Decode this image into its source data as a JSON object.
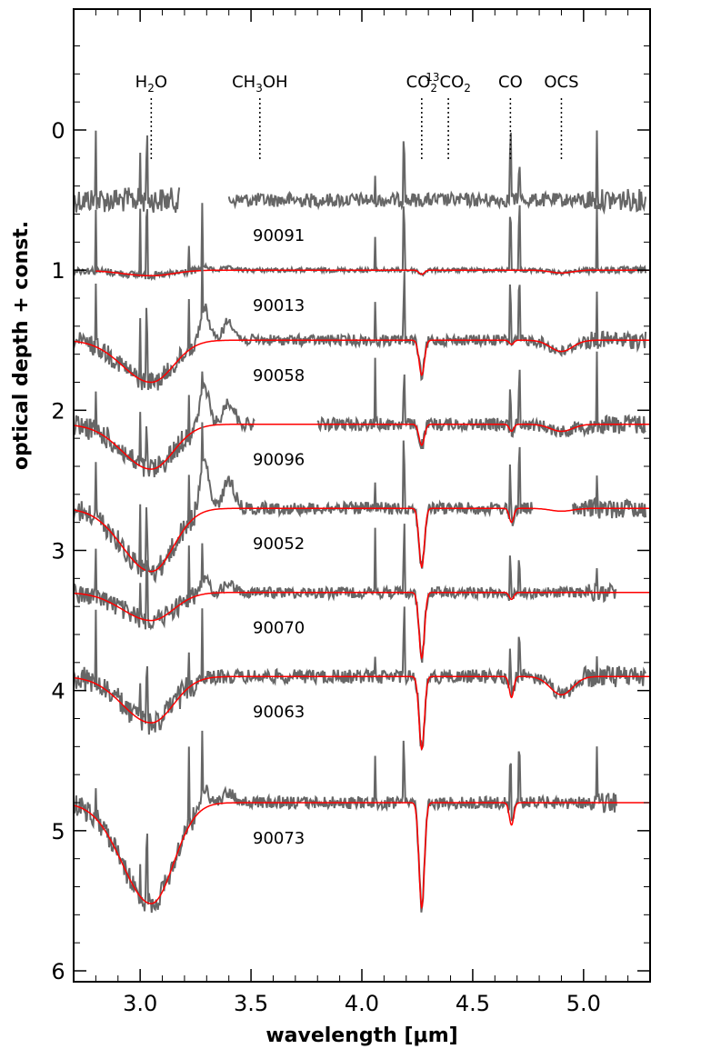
{
  "chart_data": {
    "type": "line",
    "xlabel": "wavelength [μm]",
    "ylabel": "optical depth + const.",
    "xlim": [
      2.7,
      5.3
    ],
    "ylim": [
      6.0,
      -0.7
    ],
    "y_inverted": true,
    "xticks": [
      3.0,
      3.5,
      4.0,
      4.5,
      5.0
    ],
    "xtick_labels": [
      "3.0",
      "3.5",
      "4.0",
      "4.5",
      "5.0"
    ],
    "yticks": [
      0,
      1,
      2,
      3,
      4,
      5,
      6
    ],
    "ytick_labels": [
      "0",
      "1",
      "2",
      "3",
      "4",
      "5",
      "6"
    ],
    "grid": false,
    "legend": "none",
    "colors": {
      "observed": "#666666",
      "fit": "#ff0000"
    },
    "features": [
      {
        "base": "H",
        "sub": "2",
        "post": "O",
        "sup": "",
        "x": 3.05
      },
      {
        "base": "CH",
        "sub": "3",
        "post": "OH",
        "sup": "",
        "x": 3.54
      },
      {
        "base": "CO",
        "sub": "2",
        "post": "",
        "sup": "",
        "x": 4.27
      },
      {
        "base": "CO",
        "sub": "2",
        "post": "",
        "sup": "13",
        "x": 4.39
      },
      {
        "base": "CO",
        "sub": "",
        "post": "",
        "sup": "",
        "x": 4.67
      },
      {
        "base": "OCS",
        "sub": "",
        "post": "",
        "sup": "",
        "x": 4.9
      }
    ],
    "series": [
      {
        "name": "90091",
        "label_x": 3.44,
        "baseline": 0.5,
        "h2o": 0.0,
        "co2": 0.0,
        "co": 0.0,
        "ocs": 0.0,
        "noise": 0.05,
        "has_fit": false,
        "gap": [
          3.18,
          3.4
        ],
        "x_end": 5.28,
        "hump": 0.0
      },
      {
        "name": "90013",
        "label_x": 3.44,
        "baseline": 1.0,
        "h2o": 0.04,
        "co2": 0.03,
        "co": 0.0,
        "ocs": 0.02,
        "noise": 0.015,
        "has_fit": true,
        "gap": null,
        "x_end": 5.28,
        "hump": 0.03
      },
      {
        "name": "90058",
        "label_x": 3.44,
        "baseline": 1.5,
        "h2o": 0.3,
        "co2": 0.25,
        "co": 0.03,
        "ocs": 0.08,
        "noise": 0.04,
        "has_fit": true,
        "gap": null,
        "x_end": 5.28,
        "hump": 0.28
      },
      {
        "name": "90096",
        "label_x": 3.44,
        "baseline": 2.1,
        "h2o": 0.32,
        "co2": 0.15,
        "co": 0.05,
        "ocs": 0.05,
        "noise": 0.045,
        "has_fit": true,
        "gap": [
          3.52,
          3.8
        ],
        "x_end": 5.28,
        "hump": 0.32
      },
      {
        "name": "90052",
        "label_x": 3.44,
        "baseline": 2.7,
        "h2o": 0.45,
        "co2": 0.42,
        "co": 0.1,
        "ocs": 0.02,
        "noise": 0.045,
        "has_fit": true,
        "gap": [
          4.77,
          4.95
        ],
        "x_end": 5.28,
        "hump": 0.4
      },
      {
        "name": "90070",
        "label_x": 3.44,
        "baseline": 3.3,
        "h2o": 0.2,
        "co2": 0.47,
        "co": 0.05,
        "ocs": 0.0,
        "noise": 0.04,
        "has_fit": true,
        "gap": null,
        "x_end": 5.15,
        "hump": 0.12
      },
      {
        "name": "90063",
        "label_x": 3.44,
        "baseline": 3.9,
        "h2o": 0.33,
        "co2": 0.52,
        "co": 0.15,
        "ocs": 0.13,
        "noise": 0.05,
        "has_fit": true,
        "gap": null,
        "x_end": 5.28,
        "hump": 0.0
      },
      {
        "name": "90073",
        "label_x": 3.44,
        "baseline": 4.8,
        "h2o": 0.72,
        "co2": 0.75,
        "co": 0.16,
        "ocs": 0.0,
        "noise": 0.045,
        "has_fit": true,
        "gap": null,
        "x_end": 5.15,
        "hump": 0.15
      }
    ]
  }
}
